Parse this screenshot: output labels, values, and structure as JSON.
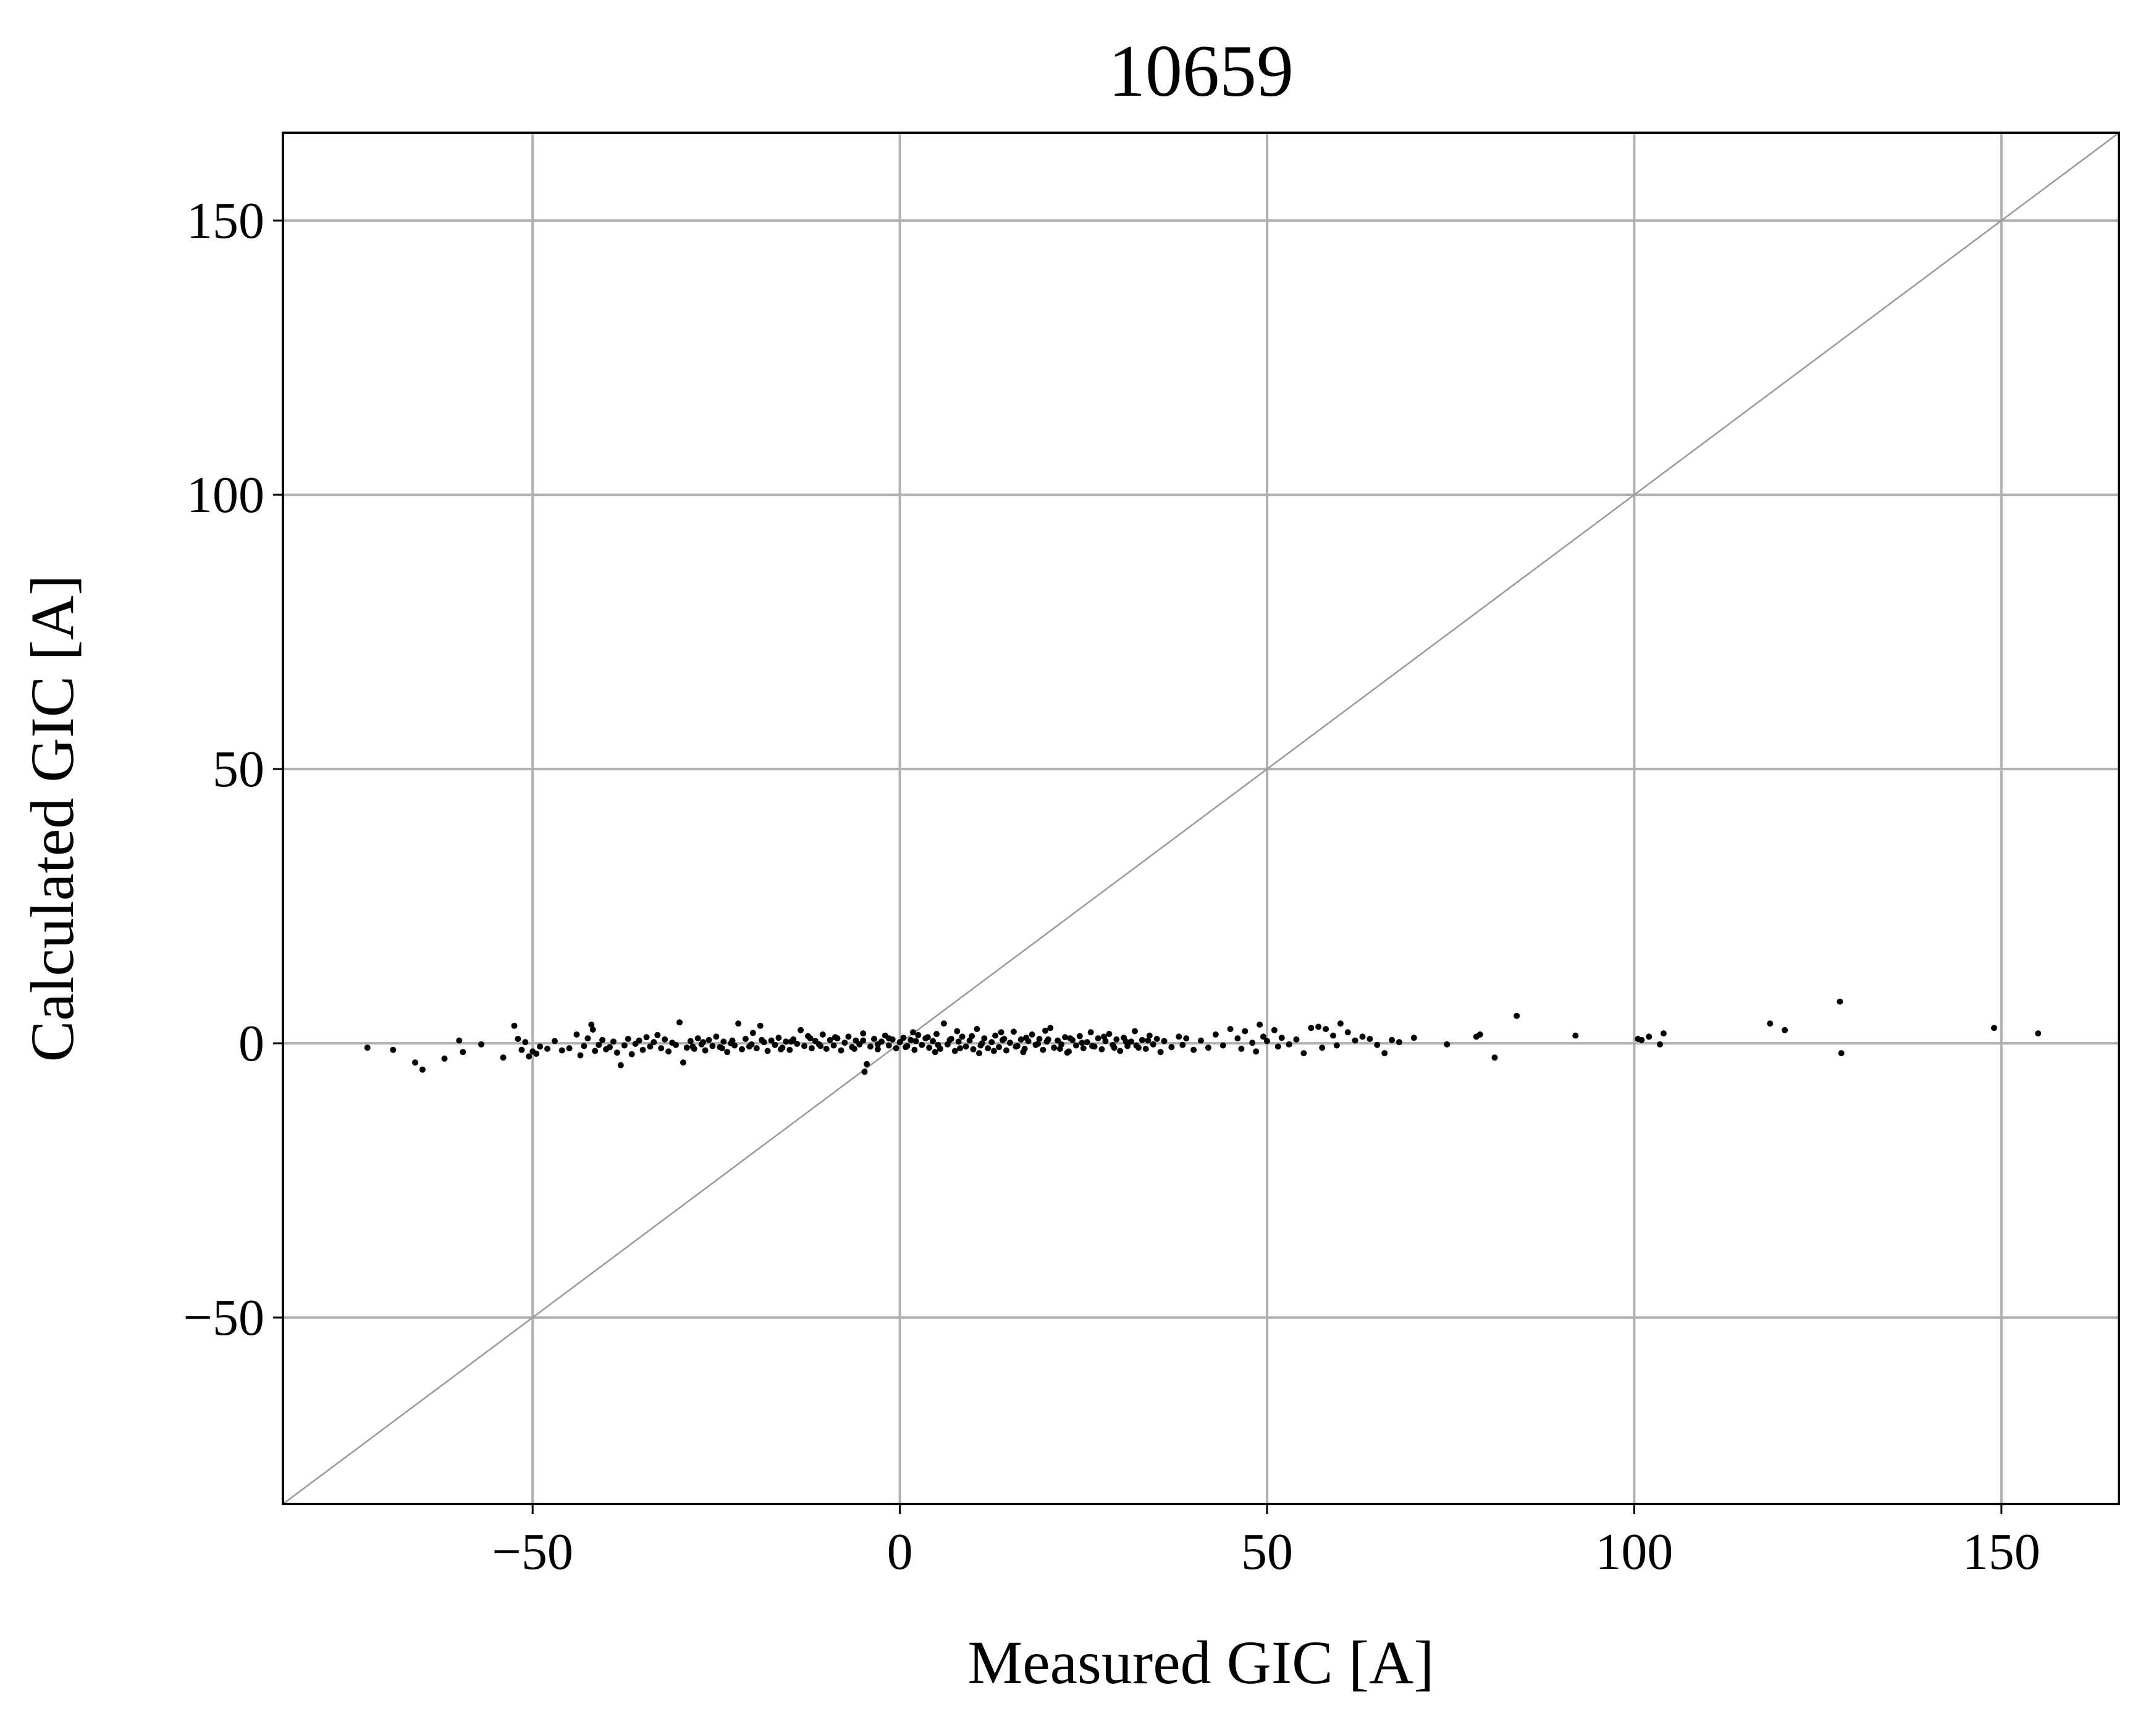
{
  "chart_data": {
    "type": "scatter",
    "title": "10659",
    "xlabel": "Measured GIC [A]",
    "ylabel": "Calculated GIC [A]",
    "xlim": [
      -84,
      166
    ],
    "ylim": [
      -84,
      166
    ],
    "xticks": [
      -50,
      0,
      50,
      100,
      150
    ],
    "yticks": [
      -50,
      0,
      50,
      100,
      150
    ],
    "xtick_labels": [
      "−50",
      "0",
      "50",
      "100",
      "150"
    ],
    "ytick_labels": [
      "−50",
      "0",
      "50",
      "100",
      "150"
    ],
    "grid": true,
    "reference_line": "y = x",
    "marker_color": "#000000",
    "grid_color": "#b0b0b0",
    "reference_line_color": "#999999",
    "series": [
      {
        "points": [
          [
            -72.5,
            -0.8
          ],
          [
            -69.0,
            -1.2
          ],
          [
            -66.0,
            -3.5
          ],
          [
            -65.0,
            -4.8
          ],
          [
            -62.0,
            -2.8
          ],
          [
            -60.0,
            0.5
          ],
          [
            -59.5,
            -1.6
          ],
          [
            -57.0,
            -0.2
          ],
          [
            -54.0,
            -2.6
          ],
          [
            -52.5,
            3.2
          ],
          [
            -52.0,
            0.8
          ],
          [
            -51.5,
            -1.2
          ],
          [
            -51.0,
            0.2
          ],
          [
            -50.5,
            -2.4
          ],
          [
            -50.0,
            -1.5
          ],
          [
            -49.5,
            -1.9
          ],
          [
            -49.0,
            -0.6
          ],
          [
            -48.0,
            -1.0
          ],
          [
            -47.0,
            0.4
          ],
          [
            -46.0,
            -1.3
          ],
          [
            -45.0,
            -0.9
          ],
          [
            -44.0,
            1.6
          ],
          [
            -43.5,
            -2.2
          ],
          [
            -43.0,
            -0.5
          ],
          [
            -42.5,
            0.9
          ],
          [
            -42.0,
            3.4
          ],
          [
            -41.8,
            2.5
          ],
          [
            -41.5,
            -1.4
          ],
          [
            -41.0,
            -0.3
          ],
          [
            -40.5,
            0.6
          ],
          [
            -40.0,
            -1.1
          ],
          [
            -39.5,
            -0.7
          ],
          [
            -39.0,
            0.3
          ],
          [
            -38.5,
            -1.7
          ],
          [
            -38.0,
            -4.0
          ],
          [
            -37.5,
            -0.4
          ],
          [
            -37.0,
            0.8
          ],
          [
            -36.5,
            -2.0
          ],
          [
            -36.0,
            -0.1
          ],
          [
            -35.5,
            0.5
          ],
          [
            -35.0,
            -1.2
          ],
          [
            -34.5,
            1.1
          ],
          [
            -34.0,
            -0.6
          ],
          [
            -33.5,
            0.2
          ],
          [
            -33.0,
            1.5
          ],
          [
            -32.5,
            -0.9
          ],
          [
            -32.0,
            0.7
          ],
          [
            -31.5,
            -1.5
          ],
          [
            -31.0,
            0.1
          ],
          [
            -30.5,
            -0.3
          ],
          [
            -30.0,
            3.8
          ],
          [
            -29.5,
            -3.5
          ],
          [
            -29.0,
            -0.8
          ],
          [
            -28.5,
            0.4
          ],
          [
            -28.0,
            -1.0
          ],
          [
            -27.5,
            0.9
          ],
          [
            -27.0,
            -0.2
          ],
          [
            -26.5,
            -1.3
          ],
          [
            -26.0,
            0.6
          ],
          [
            -25.5,
            -0.5
          ],
          [
            -25.0,
            1.2
          ],
          [
            -24.5,
            -0.7
          ],
          [
            -24.0,
            0.3
          ],
          [
            -23.5,
            -1.6
          ],
          [
            -23.0,
            0.0
          ],
          [
            -22.5,
            -0.4
          ],
          [
            -22.0,
            3.6
          ],
          [
            -21.5,
            -1.1
          ],
          [
            -21.0,
            0.8
          ],
          [
            -20.5,
            -0.6
          ],
          [
            -20.0,
            1.9
          ],
          [
            -19.5,
            -0.9
          ],
          [
            -19.0,
            3.2
          ],
          [
            -18.5,
            0.2
          ],
          [
            -18.0,
            -1.4
          ],
          [
            -17.5,
            0.5
          ],
          [
            -17.0,
            -0.3
          ],
          [
            -16.5,
            1.0
          ],
          [
            -16.0,
            -0.8
          ],
          [
            -15.5,
            0.3
          ],
          [
            -15.0,
            -1.2
          ],
          [
            -14.5,
            0.7
          ],
          [
            -14.0,
            -0.1
          ],
          [
            -13.5,
            2.4
          ],
          [
            -13.0,
            -0.5
          ],
          [
            -12.5,
            1.3
          ],
          [
            -12.0,
            -0.9
          ],
          [
            -11.5,
            0.4
          ],
          [
            -11.0,
            -0.2
          ],
          [
            -10.5,
            1.6
          ],
          [
            -10.0,
            -1.0
          ],
          [
            -9.5,
            0.6
          ],
          [
            -9.0,
            -0.4
          ],
          [
            -8.5,
            0.9
          ],
          [
            -8.0,
            -1.3
          ],
          [
            -7.5,
            0.1
          ],
          [
            -7.0,
            1.2
          ],
          [
            -6.5,
            -0.7
          ],
          [
            -6.0,
            0.5
          ],
          [
            -5.5,
            -0.2
          ],
          [
            -5.0,
            1.8
          ],
          [
            -4.8,
            -5.2
          ],
          [
            -4.5,
            -3.8
          ],
          [
            -4.0,
            -0.6
          ],
          [
            -3.5,
            0.8
          ],
          [
            -3.0,
            -1.1
          ],
          [
            -2.5,
            0.3
          ],
          [
            -2.0,
            1.4
          ],
          [
            -1.5,
            -0.4
          ],
          [
            -1.0,
            0.7
          ],
          [
            -0.5,
            -0.9
          ],
          [
            0.0,
            0.2
          ],
          [
            0.5,
            1.0
          ],
          [
            1.0,
            -0.5
          ],
          [
            1.5,
            0.6
          ],
          [
            2.0,
            -1.2
          ],
          [
            2.5,
            1.5
          ],
          [
            3.0,
            -0.3
          ],
          [
            3.5,
            0.9
          ],
          [
            4.0,
            -0.8
          ],
          [
            4.5,
            0.4
          ],
          [
            5.0,
            1.7
          ],
          [
            5.5,
            -1.0
          ],
          [
            6.0,
            3.6
          ],
          [
            6.5,
            -0.2
          ],
          [
            7.0,
            0.8
          ],
          [
            7.5,
            -1.4
          ],
          [
            8.0,
            0.3
          ],
          [
            8.5,
            1.2
          ],
          [
            9.0,
            -0.6
          ],
          [
            9.5,
            0.5
          ],
          [
            10.0,
            -1.1
          ],
          [
            10.5,
            2.6
          ],
          [
            11.0,
            -0.4
          ],
          [
            11.5,
            0.9
          ],
          [
            12.0,
            -0.9
          ],
          [
            12.5,
            0.2
          ],
          [
            13.0,
            1.4
          ],
          [
            13.5,
            -0.7
          ],
          [
            14.0,
            0.6
          ],
          [
            14.5,
            -1.3
          ],
          [
            15.0,
            0.1
          ],
          [
            15.5,
            2.1
          ],
          [
            16.0,
            -0.5
          ],
          [
            16.5,
            0.7
          ],
          [
            17.0,
            -1.0
          ],
          [
            17.5,
            0.4
          ],
          [
            18.0,
            1.6
          ],
          [
            18.5,
            -0.3
          ],
          [
            19.0,
            0.8
          ],
          [
            19.5,
            -1.2
          ],
          [
            20.0,
            0.3
          ],
          [
            20.5,
            2.8
          ],
          [
            21.0,
            -0.8
          ],
          [
            21.5,
            0.5
          ],
          [
            22.0,
            -0.2
          ],
          [
            22.5,
            1.1
          ],
          [
            23.0,
            -1.5
          ],
          [
            23.5,
            0.6
          ],
          [
            24.0,
            -0.4
          ],
          [
            24.5,
            1.3
          ],
          [
            25.0,
            -0.9
          ],
          [
            25.5,
            0.2
          ],
          [
            26.0,
            2.0
          ],
          [
            26.5,
            -0.6
          ],
          [
            27.0,
            0.9
          ],
          [
            27.5,
            -1.1
          ],
          [
            28.0,
            0.4
          ],
          [
            28.5,
            1.7
          ],
          [
            29.0,
            -0.3
          ],
          [
            29.5,
            0.7
          ],
          [
            30.0,
            -1.4
          ],
          [
            30.5,
            1.0
          ],
          [
            31.0,
            -0.5
          ],
          [
            31.5,
            0.3
          ],
          [
            32.0,
            2.2
          ],
          [
            32.5,
            -0.8
          ],
          [
            33.0,
            0.6
          ],
          [
            33.5,
            -1.0
          ],
          [
            34.0,
            1.4
          ],
          [
            34.5,
            -0.2
          ],
          [
            35.0,
            0.8
          ],
          [
            35.5,
            -1.6
          ],
          [
            36.0,
            0.4
          ],
          [
            37.0,
            -0.7
          ],
          [
            38.0,
            1.2
          ],
          [
            38.5,
            -0.3
          ],
          [
            39.0,
            0.9
          ],
          [
            40.0,
            -1.2
          ],
          [
            41.0,
            0.5
          ],
          [
            42.0,
            -0.8
          ],
          [
            43.0,
            1.6
          ],
          [
            44.0,
            -0.4
          ],
          [
            45.0,
            2.6
          ],
          [
            46.0,
            0.9
          ],
          [
            46.5,
            -1.0
          ],
          [
            47.0,
            2.2
          ],
          [
            48.0,
            0.1
          ],
          [
            48.5,
            -1.5
          ],
          [
            49.0,
            3.4
          ],
          [
            49.5,
            1.2
          ],
          [
            50.0,
            0.4
          ],
          [
            51.0,
            2.4
          ],
          [
            51.5,
            -0.6
          ],
          [
            52.0,
            1.0
          ],
          [
            53.0,
            -0.2
          ],
          [
            54.0,
            0.7
          ],
          [
            55.0,
            -1.8
          ],
          [
            56.0,
            2.8
          ],
          [
            57.0,
            3.0
          ],
          [
            57.5,
            -0.8
          ],
          [
            58.0,
            2.6
          ],
          [
            59.0,
            1.4
          ],
          [
            59.5,
            -0.4
          ],
          [
            60.0,
            3.6
          ],
          [
            61.0,
            2.0
          ],
          [
            62.0,
            0.5
          ],
          [
            63.0,
            1.2
          ],
          [
            64.0,
            0.8
          ],
          [
            65.0,
            -0.3
          ],
          [
            66.0,
            -1.8
          ],
          [
            67.0,
            0.6
          ],
          [
            68.0,
            0.2
          ],
          [
            70.0,
            1.0
          ],
          [
            74.5,
            -0.2
          ],
          [
            78.5,
            1.2
          ],
          [
            79.0,
            1.6
          ],
          [
            81.0,
            -2.6
          ],
          [
            84.0,
            5.0
          ],
          [
            92.0,
            1.4
          ],
          [
            100.5,
            0.8
          ],
          [
            101.0,
            0.6
          ],
          [
            102.0,
            1.2
          ],
          [
            103.5,
            -0.2
          ],
          [
            104.0,
            1.8
          ],
          [
            118.5,
            3.6
          ],
          [
            120.5,
            2.4
          ],
          [
            128.0,
            7.6
          ],
          [
            128.2,
            -1.8
          ],
          [
            149.0,
            2.8
          ],
          [
            155.0,
            1.8
          ],
          [
            -5.0,
            0.5
          ],
          [
            -3.0,
            -0.2
          ],
          [
            -1.5,
            0.9
          ],
          [
            0.8,
            -0.7
          ],
          [
            2.2,
            0.4
          ],
          [
            3.8,
            1.1
          ],
          [
            5.2,
            -0.3
          ],
          [
            6.8,
            0.6
          ],
          [
            8.2,
            -0.9
          ],
          [
            9.8,
            1.3
          ],
          [
            11.2,
            0.0
          ],
          [
            12.8,
            -1.4
          ],
          [
            14.2,
            0.8
          ],
          [
            15.8,
            -0.6
          ],
          [
            17.2,
            1.0
          ],
          [
            18.8,
            -0.1
          ],
          [
            20.2,
            0.7
          ],
          [
            21.8,
            -1.0
          ],
          [
            23.2,
            0.9
          ],
          [
            24.8,
            0.1
          ],
          [
            26.2,
            -0.5
          ],
          [
            27.8,
            1.2
          ],
          [
            29.2,
            -0.8
          ],
          [
            30.8,
            0.3
          ],
          [
            32.2,
            -0.4
          ],
          [
            33.8,
            0.5
          ],
          [
            -10.8,
            -0.5
          ],
          [
            -12.2,
            0.9
          ],
          [
            -14.8,
            0.3
          ],
          [
            -16.2,
            -1.1
          ],
          [
            -18.8,
            0.6
          ],
          [
            -20.2,
            -0.2
          ],
          [
            -22.8,
            0.5
          ],
          [
            -24.2,
            -0.9
          ],
          [
            -26.8,
            0.2
          ],
          [
            -28.2,
            -0.6
          ],
          [
            -8.8,
            1.1
          ],
          [
            -6.2,
            -1.0
          ],
          [
            1.8,
            2.0
          ],
          [
            4.8,
            -1.6
          ],
          [
            7.8,
            2.2
          ],
          [
            10.8,
            -1.8
          ],
          [
            13.8,
            2.0
          ],
          [
            16.8,
            -1.6
          ],
          [
            19.8,
            2.3
          ],
          [
            22.8,
            -1.7
          ]
        ]
      }
    ]
  }
}
